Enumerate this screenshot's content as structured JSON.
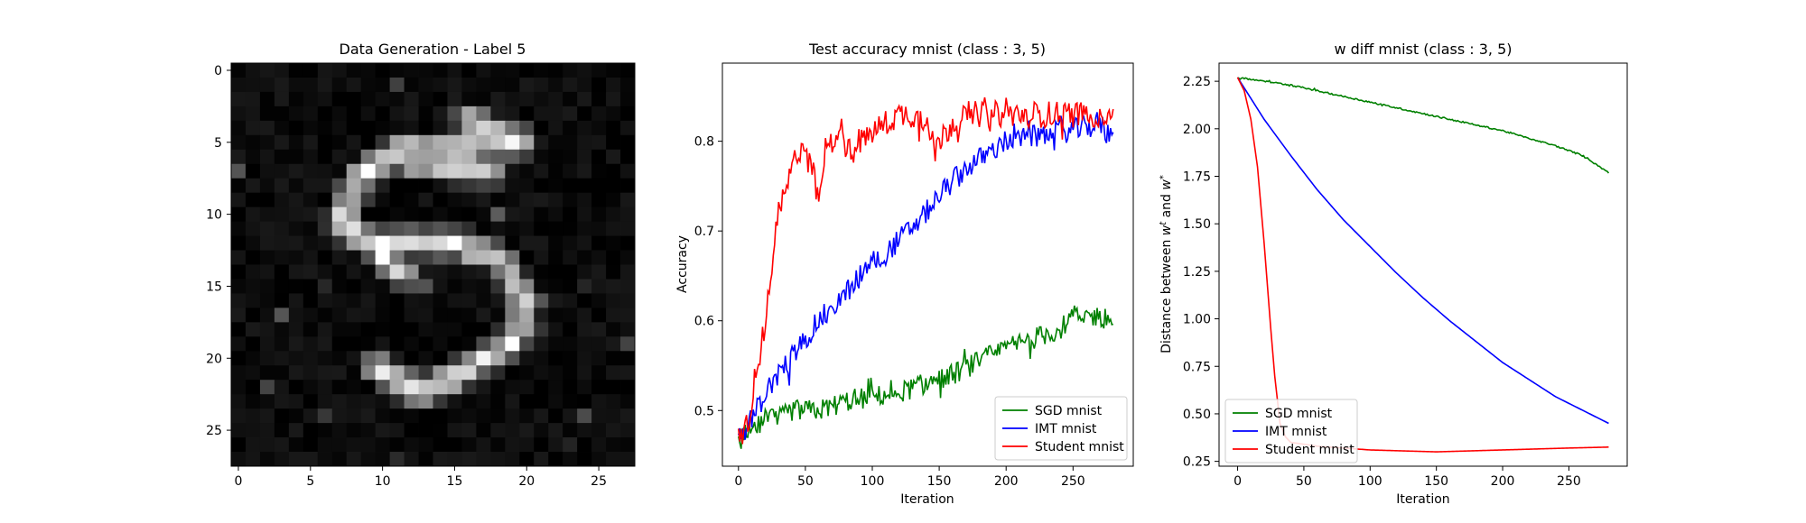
{
  "figure": {
    "heatmap": {
      "title": "Data Generation - Label 5",
      "ticks": [
        "0",
        "5",
        "10",
        "15",
        "20",
        "25"
      ],
      "colormap": "gray"
    },
    "accuracy": {
      "title": "Test accuracy mnist (class : 3, 5)",
      "xlabel": "Iteration",
      "ylabel": "Accuracy",
      "xticks": [
        "0",
        "50",
        "100",
        "150",
        "200",
        "250"
      ],
      "yticks": [
        "0.5",
        "0.6",
        "0.7",
        "0.8"
      ],
      "legend": [
        "SGD mnist",
        "IMT mnist",
        "Student mnist"
      ]
    },
    "wdiff": {
      "title": "w diff mnist (class : 3, 5)",
      "xlabel": "Iteration",
      "ylabel_prefix": "Distance between ",
      "ylabel_w": "w",
      "ylabel_t": "t",
      "ylabel_and": " and ",
      "ylabel_star": "*",
      "xticks": [
        "0",
        "50",
        "100",
        "150",
        "200",
        "250"
      ],
      "yticks": [
        "0.25",
        "0.50",
        "0.75",
        "1.00",
        "1.25",
        "1.50",
        "1.75",
        "2.00",
        "2.25"
      ],
      "legend": [
        "SGD mnist",
        "IMT mnist",
        "Student mnist"
      ]
    }
  },
  "chart_data": [
    {
      "type": "heatmap",
      "title": "Data Generation - Label 5",
      "rows": 28,
      "cols": 28,
      "xlim": [
        -0.5,
        27.5
      ],
      "ylim": [
        27.5,
        -0.5
      ],
      "description_free": true,
      "strokes": [
        {
          "r0": 3.5,
          "c0": 16,
          "r1": 5,
          "c1": 19.5
        },
        {
          "r0": 5,
          "c0": 19.5,
          "r1": 5.5,
          "c1": 15
        },
        {
          "r0": 5.5,
          "c0": 15,
          "r1": 5.5,
          "c1": 11
        },
        {
          "r0": 5.5,
          "c0": 11,
          "r1": 7.5,
          "c1": 8.5
        },
        {
          "r0": 7.5,
          "c0": 8.5,
          "r1": 10.5,
          "c1": 7
        },
        {
          "r0": 10.5,
          "c0": 7,
          "r1": 12,
          "c1": 9
        },
        {
          "r0": 12,
          "c0": 9,
          "r1": 12,
          "c1": 15
        },
        {
          "r0": 12,
          "c0": 15,
          "r1": 13,
          "c1": 18
        },
        {
          "r0": 13,
          "c0": 18,
          "r1": 16,
          "c1": 20
        },
        {
          "r0": 16,
          "c0": 20,
          "r1": 19,
          "c1": 19
        },
        {
          "r0": 19,
          "c0": 19,
          "r1": 21,
          "c1": 15.5
        },
        {
          "r0": 21,
          "c0": 15.5,
          "r1": 22.5,
          "c1": 12.5
        },
        {
          "r0": 22.5,
          "c0": 12.5,
          "r1": 20.5,
          "c1": 9.5
        },
        {
          "r0": 6.5,
          "c0": 12,
          "r1": 7,
          "c1": 17.5
        },
        {
          "r0": 13,
          "c0": 10,
          "r1": 14,
          "c1": 11.5
        }
      ]
    },
    {
      "type": "line",
      "title": "Test accuracy mnist (class : 3, 5)",
      "xlabel": "Iteration",
      "ylabel": "Accuracy",
      "xlim": [
        -12,
        295
      ],
      "ylim": [
        0.438,
        0.887
      ],
      "n_points": 281,
      "legend": "lower-right",
      "series": [
        {
          "name": "SGD mnist",
          "color": "#008000",
          "anchors": [
            [
              0,
              0.47
            ],
            [
              10,
              0.475
            ],
            [
              20,
              0.49
            ],
            [
              30,
              0.49
            ],
            [
              40,
              0.5
            ],
            [
              60,
              0.5
            ],
            [
              80,
              0.51
            ],
            [
              100,
              0.515
            ],
            [
              120,
              0.52
            ],
            [
              140,
              0.53
            ],
            [
              160,
              0.54
            ],
            [
              180,
              0.555
            ],
            [
              200,
              0.57
            ],
            [
              220,
              0.58
            ],
            [
              240,
              0.59
            ],
            [
              250,
              0.605
            ],
            [
              260,
              0.605
            ],
            [
              270,
              0.605
            ],
            [
              280,
              0.6
            ]
          ],
          "noise": 0.012
        },
        {
          "name": "IMT mnist",
          "color": "#0000ff",
          "anchors": [
            [
              0,
              0.47
            ],
            [
              10,
              0.49
            ],
            [
              20,
              0.52
            ],
            [
              30,
              0.54
            ],
            [
              40,
              0.56
            ],
            [
              50,
              0.58
            ],
            [
              60,
              0.6
            ],
            [
              70,
              0.615
            ],
            [
              80,
              0.63
            ],
            [
              90,
              0.65
            ],
            [
              100,
              0.665
            ],
            [
              110,
              0.675
            ],
            [
              120,
              0.69
            ],
            [
              130,
              0.705
            ],
            [
              140,
              0.72
            ],
            [
              150,
              0.74
            ],
            [
              160,
              0.755
            ],
            [
              170,
              0.77
            ],
            [
              180,
              0.78
            ],
            [
              190,
              0.79
            ],
            [
              200,
              0.8
            ],
            [
              220,
              0.805
            ],
            [
              240,
              0.81
            ],
            [
              260,
              0.815
            ],
            [
              270,
              0.82
            ],
            [
              280,
              0.8
            ]
          ],
          "noise": 0.013
        },
        {
          "name": "Student mnist",
          "color": "#ff0000",
          "anchors": [
            [
              0,
              0.47
            ],
            [
              5,
              0.48
            ],
            [
              10,
              0.5
            ],
            [
              15,
              0.55
            ],
            [
              20,
              0.6
            ],
            [
              25,
              0.66
            ],
            [
              30,
              0.72
            ],
            [
              35,
              0.74
            ],
            [
              40,
              0.77
            ],
            [
              45,
              0.79
            ],
            [
              50,
              0.8
            ],
            [
              55,
              0.77
            ],
            [
              60,
              0.73
            ],
            [
              65,
              0.79
            ],
            [
              70,
              0.8
            ],
            [
              75,
              0.82
            ],
            [
              80,
              0.8
            ],
            [
              85,
              0.78
            ],
            [
              90,
              0.8
            ],
            [
              100,
              0.81
            ],
            [
              110,
              0.82
            ],
            [
              120,
              0.83
            ],
            [
              130,
              0.83
            ],
            [
              140,
              0.82
            ],
            [
              150,
              0.8
            ],
            [
              160,
              0.82
            ],
            [
              170,
              0.83
            ],
            [
              200,
              0.83
            ],
            [
              230,
              0.83
            ],
            [
              260,
              0.83
            ],
            [
              280,
              0.83
            ]
          ],
          "noise": 0.015
        }
      ]
    },
    {
      "type": "line",
      "title": "w diff mnist (class : 3, 5)",
      "xlabel": "Iteration",
      "ylabel": "Distance between w^t and w^*",
      "xlim": [
        -14,
        294
      ],
      "ylim": [
        0.2245,
        2.3455
      ],
      "n_points": 281,
      "legend": "lower-left",
      "series": [
        {
          "name": "SGD mnist",
          "color": "#008000",
          "anchors": [
            [
              0,
              2.27
            ],
            [
              20,
              2.25
            ],
            [
              40,
              2.23
            ],
            [
              60,
              2.2
            ],
            [
              80,
              2.17
            ],
            [
              100,
              2.14
            ],
            [
              120,
              2.11
            ],
            [
              140,
              2.08
            ],
            [
              160,
              2.05
            ],
            [
              180,
              2.02
            ],
            [
              200,
              1.99
            ],
            [
              220,
              1.95
            ],
            [
              240,
              1.91
            ],
            [
              260,
              1.86
            ],
            [
              280,
              1.77
            ]
          ],
          "noise": 0.004
        },
        {
          "name": "IMT mnist",
          "color": "#0000ff",
          "anchors": [
            [
              0,
              2.27
            ],
            [
              20,
              2.05
            ],
            [
              40,
              1.86
            ],
            [
              60,
              1.68
            ],
            [
              80,
              1.52
            ],
            [
              100,
              1.38
            ],
            [
              120,
              1.24
            ],
            [
              140,
              1.11
            ],
            [
              160,
              0.99
            ],
            [
              180,
              0.88
            ],
            [
              200,
              0.77
            ],
            [
              220,
              0.68
            ],
            [
              240,
              0.59
            ],
            [
              260,
              0.52
            ],
            [
              280,
              0.45
            ]
          ],
          "noise": 0.0
        },
        {
          "name": "Student mnist",
          "color": "#ff0000",
          "anchors": [
            [
              0,
              2.27
            ],
            [
              5,
              2.2
            ],
            [
              10,
              2.05
            ],
            [
              15,
              1.8
            ],
            [
              20,
              1.4
            ],
            [
              25,
              0.95
            ],
            [
              28,
              0.7
            ],
            [
              32,
              0.45
            ],
            [
              36,
              0.38
            ],
            [
              40,
              0.35
            ],
            [
              60,
              0.33
            ],
            [
              80,
              0.32
            ],
            [
              100,
              0.31
            ],
            [
              150,
              0.3
            ],
            [
              200,
              0.31
            ],
            [
              250,
              0.32
            ],
            [
              280,
              0.325
            ]
          ],
          "noise": 0.0
        }
      ]
    }
  ]
}
